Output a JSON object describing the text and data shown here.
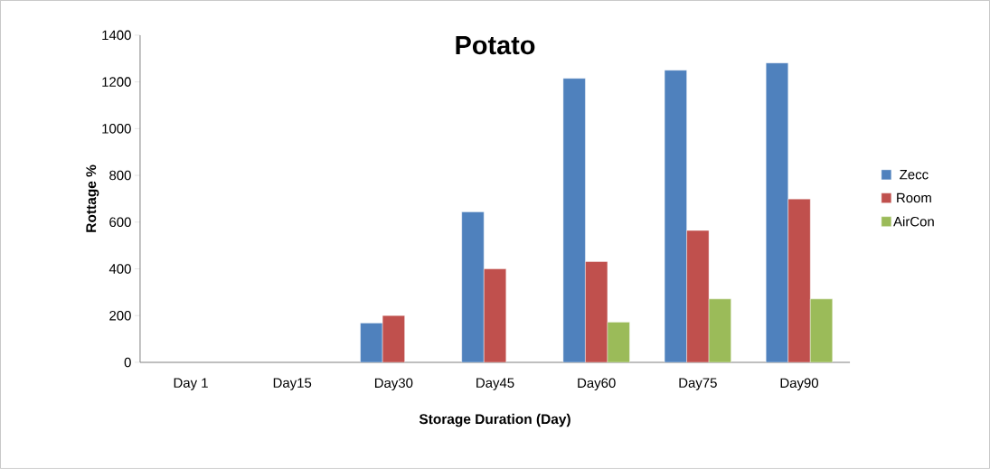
{
  "chart_data": {
    "type": "bar",
    "title": "Potato",
    "xlabel": "Storage Duration (Day)",
    "ylabel": "Rottage %",
    "categories": [
      "Day 1",
      "Day15",
      "Day30",
      "Day45",
      "Day60",
      "Day75",
      "Day90"
    ],
    "series": [
      {
        "name": "Zecc",
        "color": "#4f81bd",
        "values": [
          null,
          null,
          168,
          644,
          1215,
          1250,
          1281
        ]
      },
      {
        "name": "Room",
        "color": "#c0504d",
        "values": [
          null,
          null,
          200,
          400,
          431,
          564,
          699
        ]
      },
      {
        "name": "AirCon",
        "color": "#9bbb59",
        "values": [
          null,
          null,
          null,
          null,
          172,
          271,
          271
        ]
      }
    ],
    "ylim": [
      0,
      1400
    ],
    "yticks": [
      0,
      200,
      400,
      600,
      800,
      1000,
      1200,
      1400
    ],
    "grid": false,
    "legend": "right"
  }
}
